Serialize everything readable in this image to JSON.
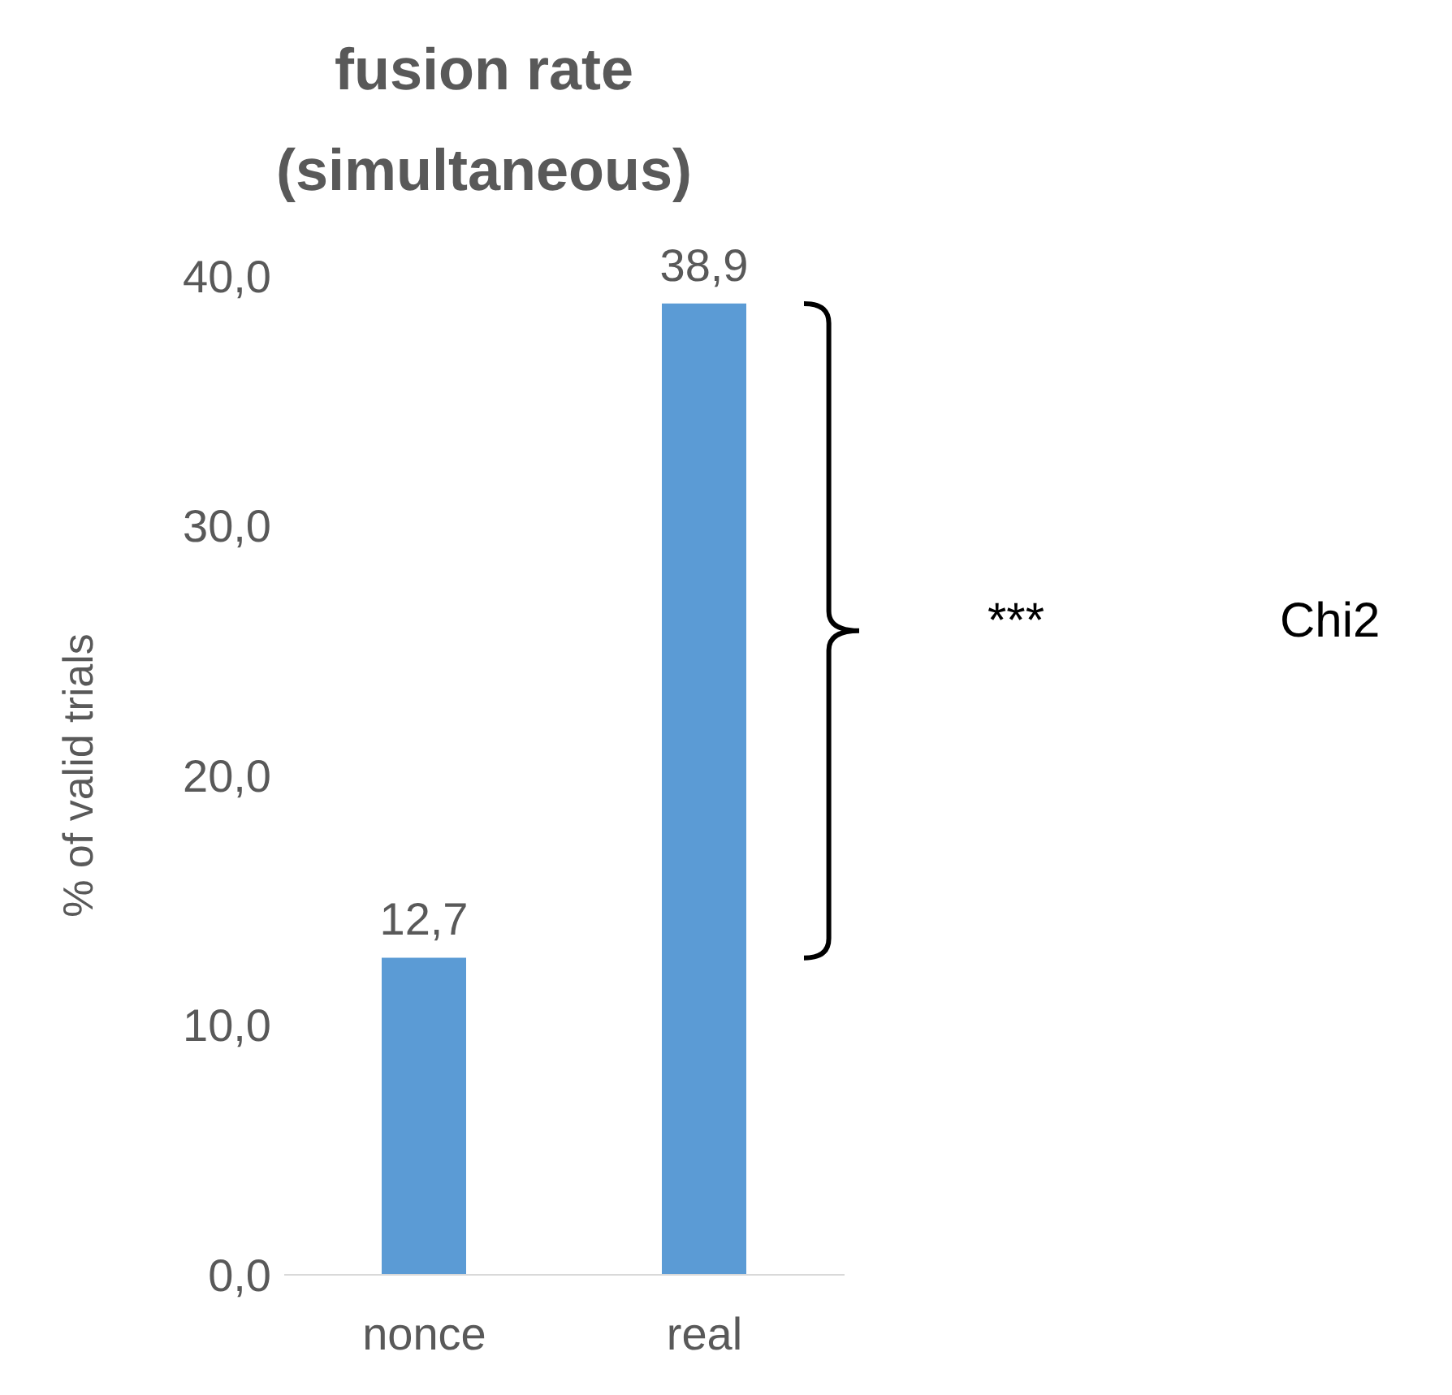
{
  "chart_data": {
    "type": "bar",
    "title": "fusion rate\n(simultaneous)",
    "ylabel": "% of valid trials",
    "categories": [
      "nonce",
      "real"
    ],
    "values": [
      12.7,
      38.9
    ],
    "value_labels": [
      "12,7",
      "38,9"
    ],
    "color": "#5b9bd5",
    "ylim": [
      0,
      40
    ],
    "yticks": [
      {
        "value": 0,
        "label": "0,0"
      },
      {
        "value": 10,
        "label": "10,0"
      },
      {
        "value": 20,
        "label": "20,0"
      },
      {
        "value": 30,
        "label": "30,0"
      },
      {
        "value": 40,
        "label": "40,0"
      }
    ],
    "grid": false,
    "legend": false,
    "annotations": [
      "***",
      "Chi2"
    ]
  }
}
